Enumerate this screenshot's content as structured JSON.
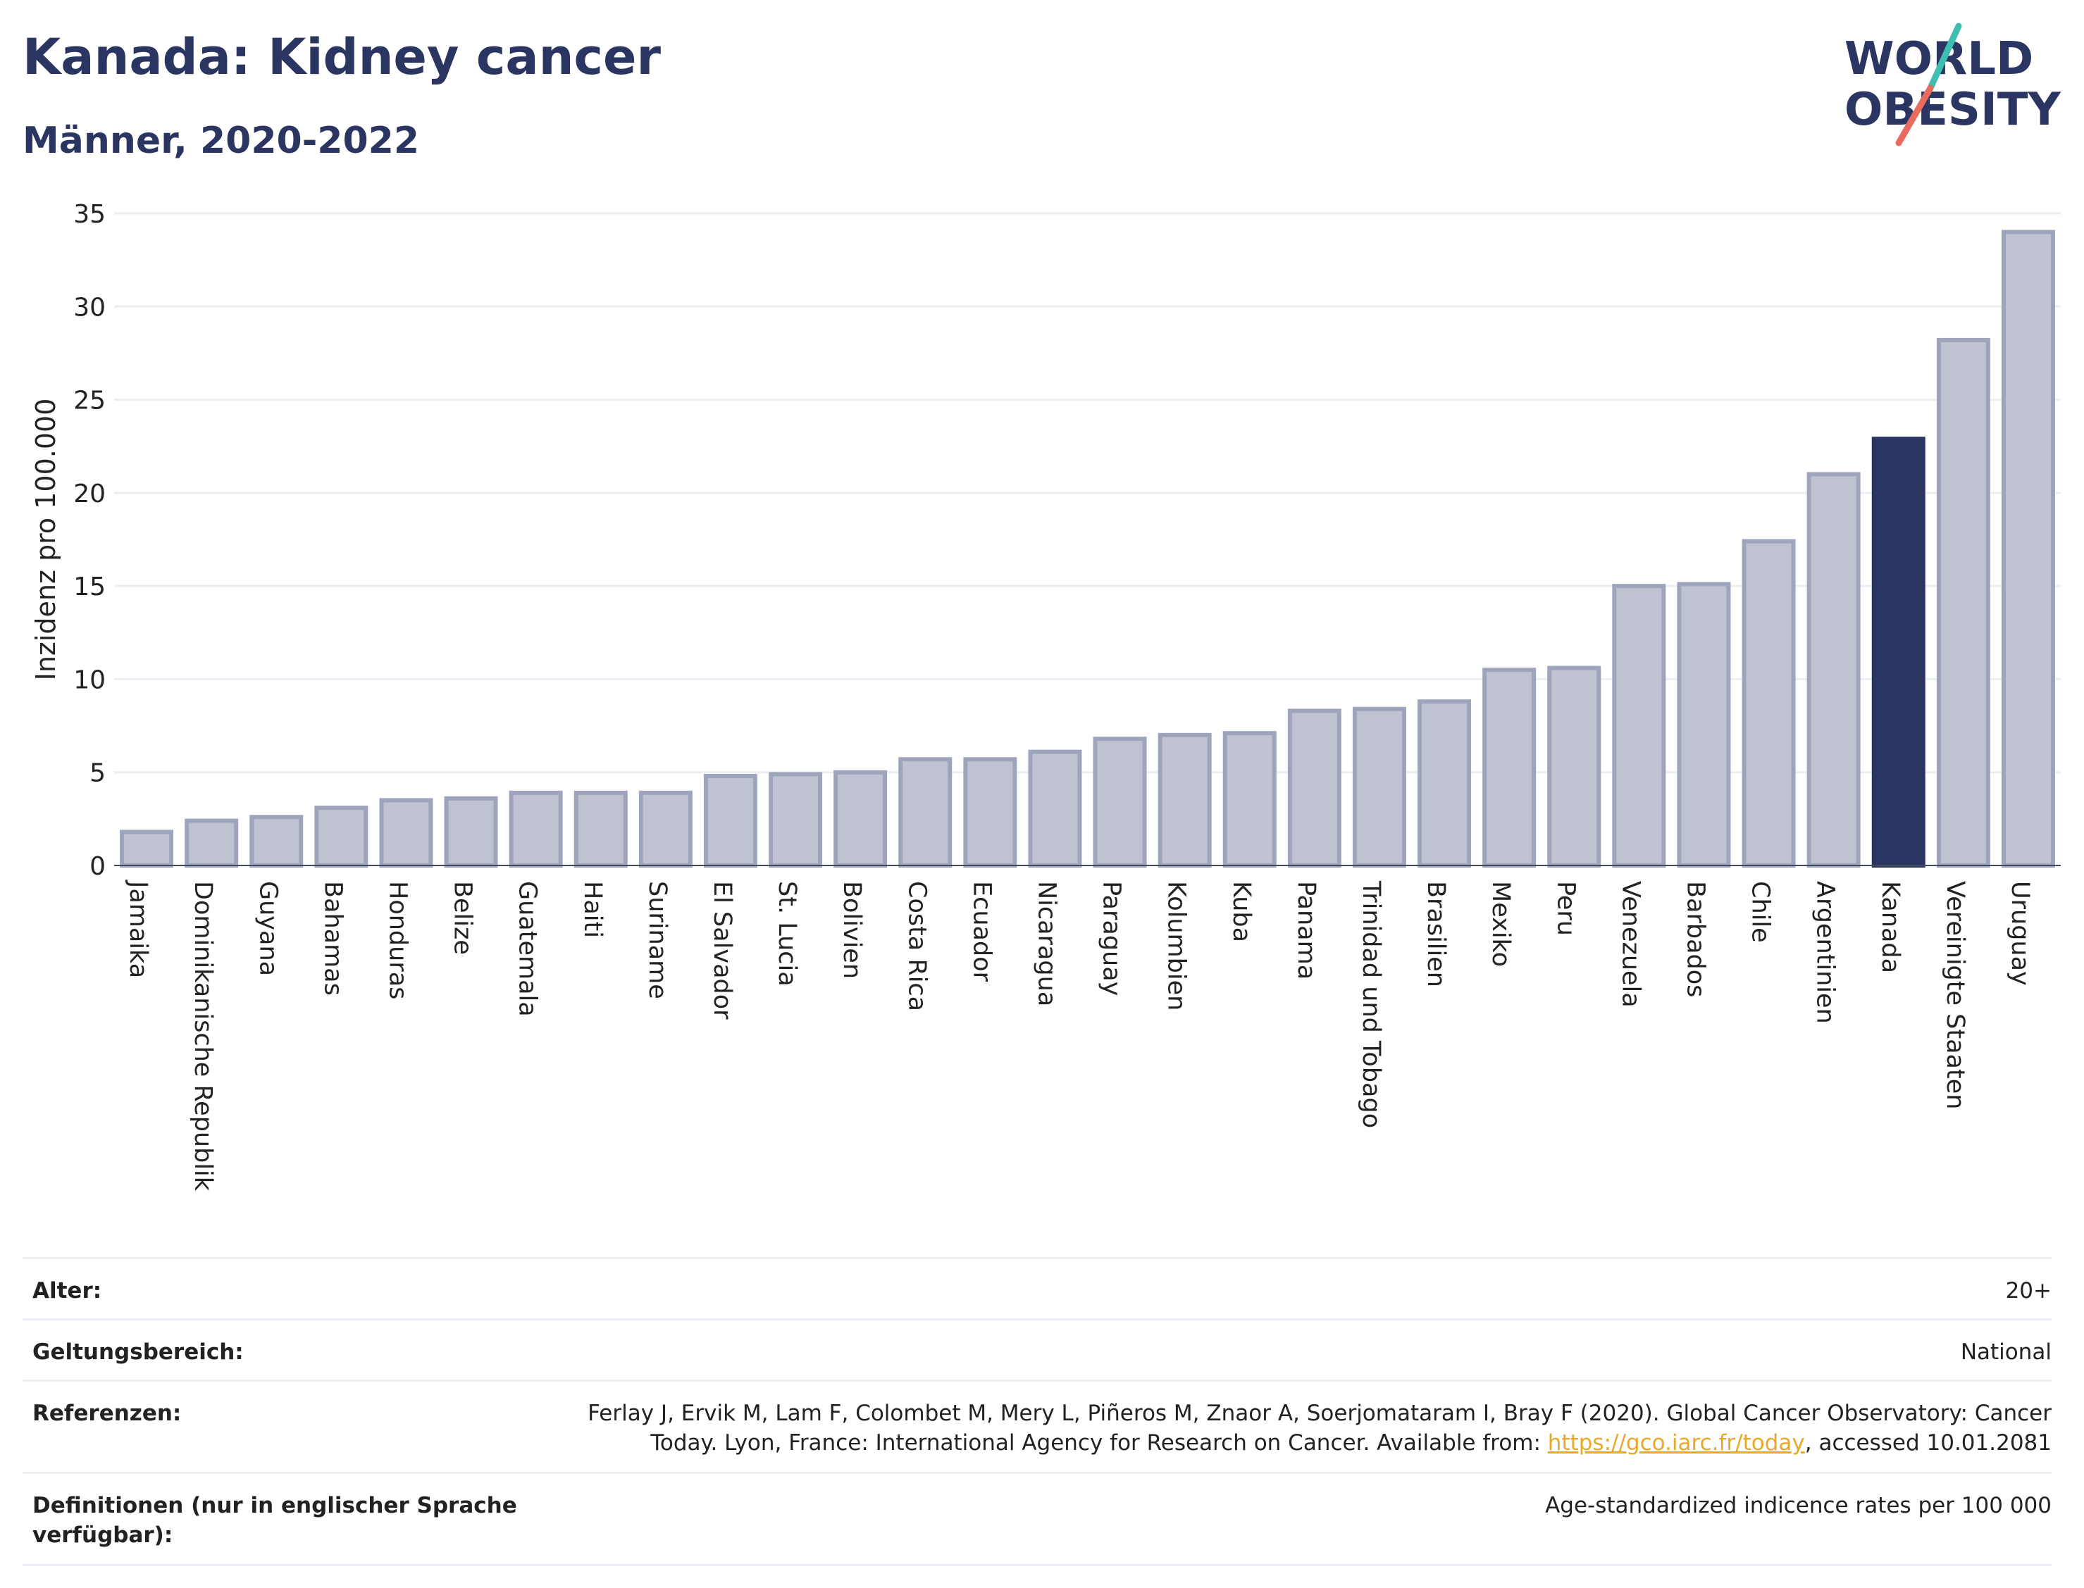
{
  "header": {
    "title": "Kanada: Kidney cancer",
    "subtitle": "Männer, 2020-2022"
  },
  "logo": {
    "line1": "WORLD",
    "line2": "OBESITY"
  },
  "colors": {
    "title": "#2a3561",
    "bar_default": "#bfc3d1",
    "bar_default_stroke": "#9ea4bb",
    "bar_highlight": "#2a3561",
    "grid": "#eceef3",
    "link": "#e8a92b",
    "logo_teal": "#3fbfb2",
    "logo_coral": "#e86b5d"
  },
  "chart_data": {
    "type": "bar",
    "ylabel": "Inzidenz pro 100.000",
    "ylim": [
      0,
      35
    ],
    "yticks": [
      0,
      5,
      10,
      15,
      20,
      25,
      30,
      35
    ],
    "highlight": "Kanada",
    "categories": [
      "Jamaika",
      "Dominikanische Republik",
      "Guyana",
      "Bahamas",
      "Honduras",
      "Belize",
      "Guatemala",
      "Haiti",
      "Suriname",
      "El Salvador",
      "St. Lucia",
      "Bolivien",
      "Costa Rica",
      "Ecuador",
      "Nicaragua",
      "Paraguay",
      "Kolumbien",
      "Kuba",
      "Panama",
      "Trinidad und Tobago",
      "Brasilien",
      "Mexiko",
      "Peru",
      "Venezuela",
      "Barbados",
      "Chile",
      "Argentinien",
      "Kanada",
      "Vereinigte Staaten",
      "Uruguay"
    ],
    "values": [
      1.8,
      2.4,
      2.6,
      3.1,
      3.5,
      3.6,
      3.9,
      3.9,
      3.9,
      4.8,
      4.9,
      5.0,
      5.7,
      5.7,
      6.1,
      6.8,
      7.0,
      7.1,
      8.3,
      8.4,
      8.8,
      10.5,
      10.6,
      15.0,
      15.1,
      17.4,
      21.0,
      22.9,
      28.2,
      34.0
    ],
    "grid": true
  },
  "metadata": {
    "age_label": "Alter:",
    "age_value": "20+",
    "scope_label": "Geltungsbereich:",
    "scope_value": "National",
    "refs_label": "Referenzen:",
    "refs_text_line1": "Ferlay J, Ervik M, Lam F, Colombet M, Mery L, Piñeros M, Znaor A, Soerjomataram I, Bray F (2020). Global Cancer Observatory: Cancer",
    "refs_text_line2_pre": "Today. Lyon, France: International Agency for Research on Cancer. Available from: ",
    "refs_link": "https://gco.iarc.fr/today",
    "refs_text_line2_post": ", accessed 10.01.2081",
    "defs_label": "Definitionen (nur in englischer Sprache verfügbar):",
    "defs_value": "Age-standardized indicence rates per 100 000"
  }
}
